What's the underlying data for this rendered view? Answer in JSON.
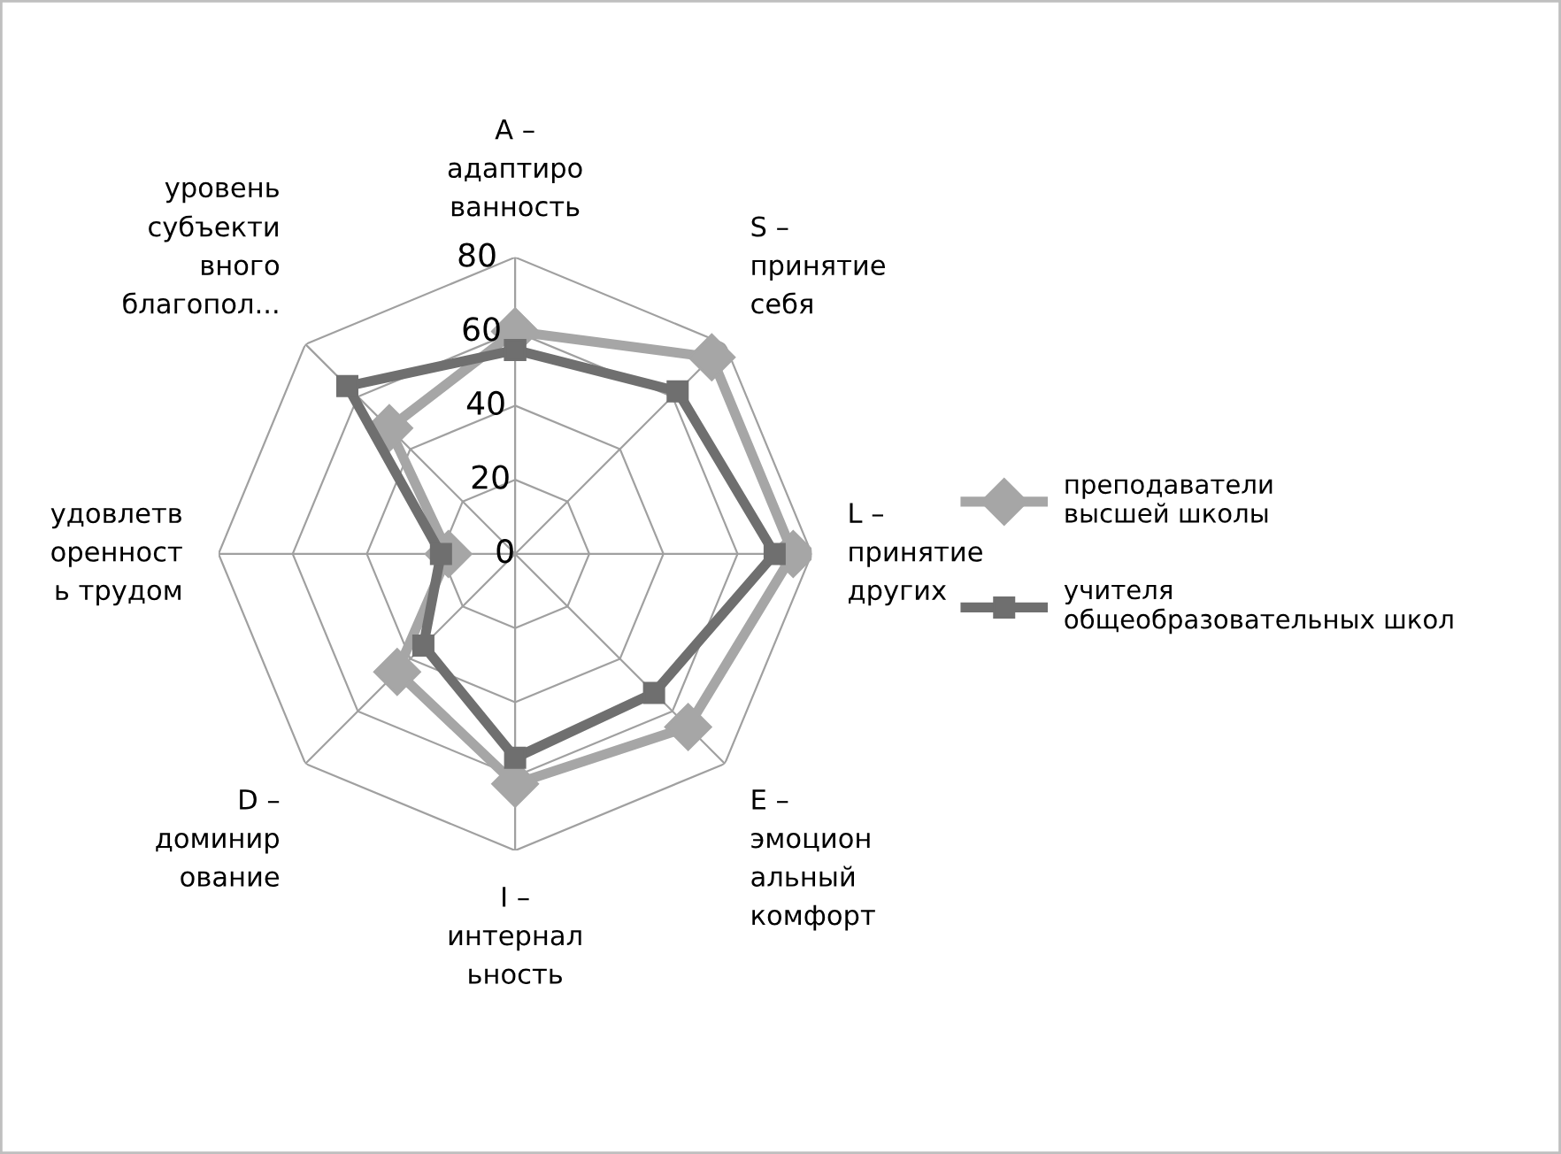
{
  "chart_data": {
    "type": "radar",
    "categories": [
      "A –\nадаптиро\nванность",
      "S –\nпринятие\nсебя",
      "L –\nпринятие\nдругих",
      "E –\nэмоцион\nальный\nкомфорт",
      "I –\nинтернал\nьность",
      "D –\nдоминир\nование",
      "удовлетв\nоренност\nь трудом",
      "уровень\nсубъекти\nвного\nблагопол..."
    ],
    "series": [
      {
        "name": "преподаватели высшей школы",
        "color": "#a6a6a6",
        "marker": "diamond",
        "values": [
          60,
          75,
          75,
          66,
          62,
          45,
          18,
          48
        ]
      },
      {
        "name": "учителя общеобразовательных школ",
        "color": "#6f6f6f",
        "marker": "square",
        "values": [
          55,
          62,
          70,
          53,
          55,
          35,
          20,
          64
        ]
      }
    ],
    "ylim": [
      0,
      80
    ],
    "yticks": [
      0,
      20,
      40,
      60,
      80
    ],
    "grid": true,
    "legend": "right"
  }
}
